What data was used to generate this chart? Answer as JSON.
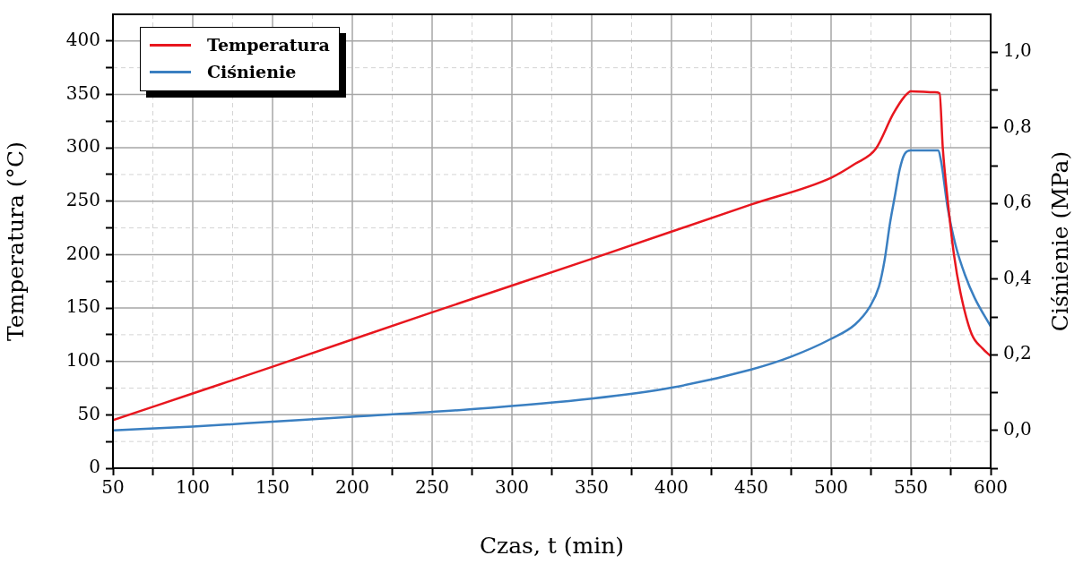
{
  "chart_data": {
    "type": "line",
    "xlabel": "Czas, t (min)",
    "ylabel": "Temperatura (°C)",
    "y2label": "Ciśnienie (MPa)",
    "xlim": [
      50,
      600
    ],
    "xticks": [
      50,
      {
        "value": 75,
        "label": null
      },
      100,
      {
        "value": 125,
        "label": null
      },
      150,
      {
        "value": 175,
        "label": null
      },
      200,
      {
        "value": 225,
        "label": null
      },
      250,
      {
        "value": 275,
        "label": null
      },
      300,
      {
        "value": 325,
        "label": null
      },
      350,
      {
        "value": 375,
        "label": null
      },
      400,
      {
        "value": 425,
        "label": null
      },
      450,
      {
        "value": 475,
        "label": null
      },
      500,
      {
        "value": 525,
        "label": null
      },
      550,
      {
        "value": 575,
        "label": null
      },
      600
    ],
    "ylim": [
      0,
      425
    ],
    "yticks": [
      0,
      {
        "value": 25,
        "label": null
      },
      50,
      {
        "value": 75,
        "label": null
      },
      100,
      {
        "value": 125,
        "label": null
      },
      150,
      {
        "value": 175,
        "label": null
      },
      200,
      {
        "value": 225,
        "label": null
      },
      250,
      {
        "value": 275,
        "label": null
      },
      300,
      {
        "value": 325,
        "label": null
      },
      350,
      {
        "value": 375,
        "label": null
      },
      400
    ],
    "y2lim": [
      -0.1,
      1.1
    ],
    "y2ticks": [
      {
        "value": -0.1,
        "label": null
      },
      {
        "value": 0,
        "label": "0,0"
      },
      {
        "value": 0.1,
        "label": null
      },
      {
        "value": 0.2,
        "label": "0,2"
      },
      {
        "value": 0.3,
        "label": null
      },
      {
        "value": 0.4,
        "label": "0,4"
      },
      {
        "value": 0.5,
        "label": null
      },
      {
        "value": 0.6,
        "label": "0,6"
      },
      {
        "value": 0.7,
        "label": null
      },
      {
        "value": 0.8,
        "label": "0,8"
      },
      {
        "value": 0.9,
        "label": null
      },
      {
        "value": 1.0,
        "label": "1,0"
      }
    ],
    "grid": true,
    "legend": "top left",
    "marker": "none",
    "series": [
      {
        "name": "Temperatura",
        "color": "#e8161e",
        "x": [
          50,
          100,
          150,
          250,
          350,
          450,
          500,
          515,
          528,
          539,
          546,
          550,
          565,
          568,
          570,
          573,
          577,
          581,
          588,
          595,
          600
        ],
        "values": [
          45,
          70,
          95,
          146,
          196,
          247,
          272,
          285,
          299,
          332,
          348,
          353,
          352,
          351,
          300,
          252,
          200,
          165,
          126,
          112,
          105
        ]
      },
      {
        "name": "Ciśnienie",
        "color": "#3a7fc1",
        "axis": "y2",
        "x": [
          50,
          100,
          150,
          200,
          275,
          350,
          400,
          450,
          475,
          500,
          515,
          524,
          530,
          533.5,
          537,
          540,
          543,
          546,
          550,
          567,
          569,
          573,
          578,
          584,
          590,
          600
        ],
        "values": [
          0.0,
          0.01,
          0.023,
          0.036,
          0.056,
          0.084,
          0.113,
          0.161,
          0.195,
          0.242,
          0.28,
          0.325,
          0.38,
          0.449,
          0.55,
          0.62,
          0.69,
          0.73,
          0.74,
          0.74,
          0.71,
          0.59,
          0.49,
          0.41,
          0.35,
          0.275
        ]
      }
    ]
  }
}
